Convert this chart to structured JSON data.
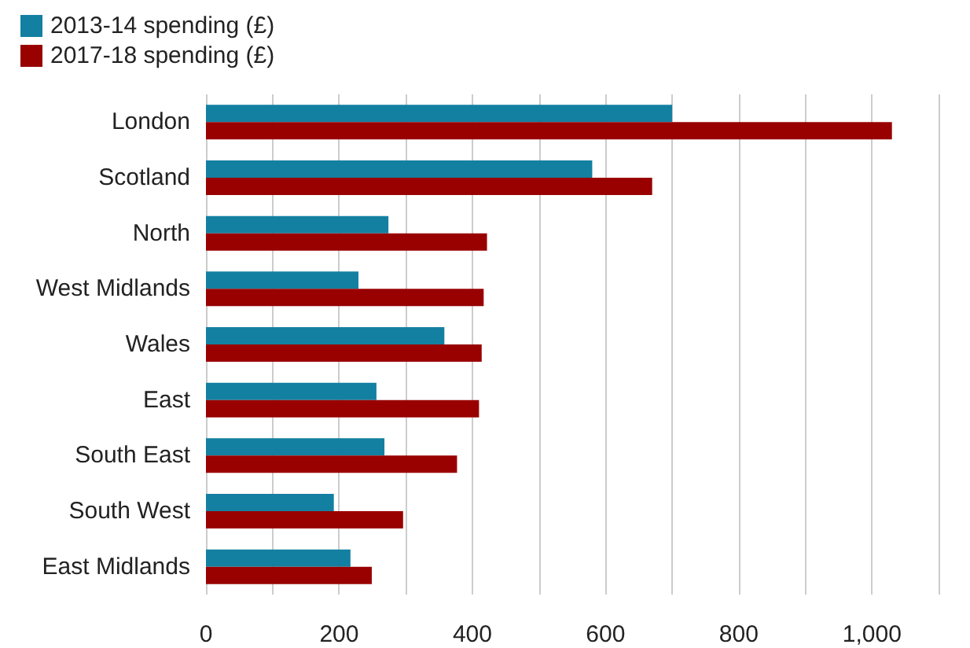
{
  "chart_data": {
    "type": "bar",
    "orientation": "horizontal",
    "categories": [
      "London",
      "Scotland",
      "North",
      "West Midlands",
      "Wales",
      "East",
      "South East",
      "South West",
      "East Midlands"
    ],
    "series": [
      {
        "name": "2013-14 spending (£)",
        "color": "#1380a1",
        "values": [
          700,
          580,
          274,
          229,
          358,
          256,
          268,
          192,
          217
        ]
      },
      {
        "name": "2017-18 spending (£)",
        "color": "#990000",
        "values": [
          1030,
          670,
          422,
          417,
          414,
          410,
          377,
          296,
          249
        ]
      }
    ],
    "xlim": [
      0,
      1100
    ],
    "xticks": [
      0,
      {
        "value": 100,
        "label": null
      },
      200,
      {
        "value": 300,
        "label": null
      },
      400,
      {
        "value": 500,
        "label": null
      },
      600,
      {
        "value": 700,
        "label": null
      },
      800,
      {
        "value": 900,
        "label": null
      },
      {
        "value": 1000,
        "label": "1,000"
      },
      {
        "value": 1100,
        "label": null
      }
    ],
    "grid": "x",
    "legend": "top left"
  }
}
